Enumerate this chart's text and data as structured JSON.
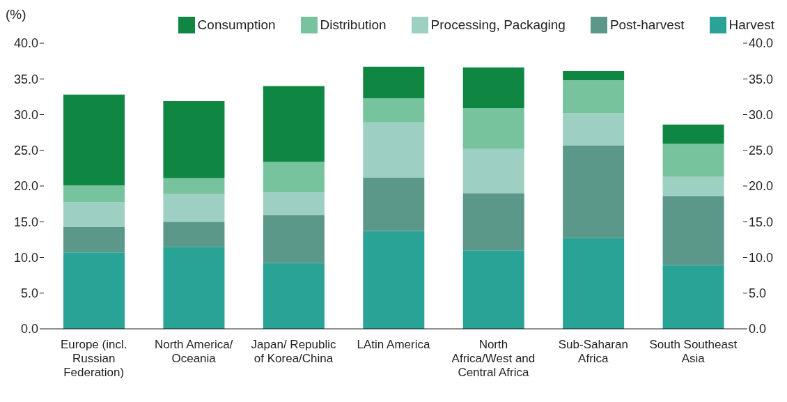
{
  "chart_data": {
    "type": "bar",
    "stacked": true,
    "ylabel": "(%)",
    "categories": [
      "Europe (incl. Russian Federation)",
      "North America/ Oceania",
      "Japan/ Republic of Korea/China",
      "LAtin America",
      "North Africa/West and Central Africa",
      "Sub-Saharan Africa",
      "South Southeast Asia"
    ],
    "series": [
      {
        "name": "Harvest",
        "color": "#29a396",
        "values": [
          10.7,
          11.5,
          9.2,
          13.7,
          11.0,
          12.7,
          8.9
        ]
      },
      {
        "name": "Post-harvest",
        "color": "#5b988a",
        "values": [
          3.6,
          3.5,
          6.7,
          7.5,
          8.0,
          13.0,
          9.7
        ]
      },
      {
        "name": "Processing, Packaging",
        "color": "#9ecfc3",
        "values": [
          3.4,
          3.9,
          3.2,
          7.7,
          6.2,
          4.5,
          2.7
        ]
      },
      {
        "name": "Distribution",
        "color": "#76c39e",
        "values": [
          2.4,
          2.2,
          4.3,
          3.4,
          5.7,
          4.6,
          4.6
        ]
      },
      {
        "name": "Consumption",
        "color": "#0f8743",
        "values": [
          12.7,
          10.8,
          10.6,
          4.4,
          5.7,
          1.3,
          2.7
        ]
      }
    ],
    "ylim": [
      0,
      40
    ],
    "yticks": [
      {
        "value": 0,
        "label": "0.0"
      },
      {
        "value": 5,
        "label": "5.0"
      },
      {
        "value": 10,
        "label": "10.0"
      },
      {
        "value": 15,
        "label": "15.0"
      },
      {
        "value": 20,
        "label": "20.0"
      },
      {
        "value": 25,
        "label": "25.0"
      },
      {
        "value": 30,
        "label": "30.0"
      },
      {
        "value": 35,
        "label": "35.0"
      },
      {
        "value": 40,
        "label": "40.0"
      }
    ],
    "y2lim": [
      0,
      40
    ],
    "y2ticks": [
      {
        "value": 0,
        "label": "0.0"
      },
      {
        "value": 5,
        "label": "5.0"
      },
      {
        "value": 10,
        "label": "10.0"
      },
      {
        "value": 15,
        "label": "15.0"
      },
      {
        "value": 20,
        "label": "20.0"
      },
      {
        "value": 25,
        "label": "25.0"
      },
      {
        "value": 30,
        "label": "30.0"
      },
      {
        "value": 35,
        "label": "35.0"
      },
      {
        "value": 40,
        "label": "40.0"
      }
    ],
    "legend": "top"
  }
}
